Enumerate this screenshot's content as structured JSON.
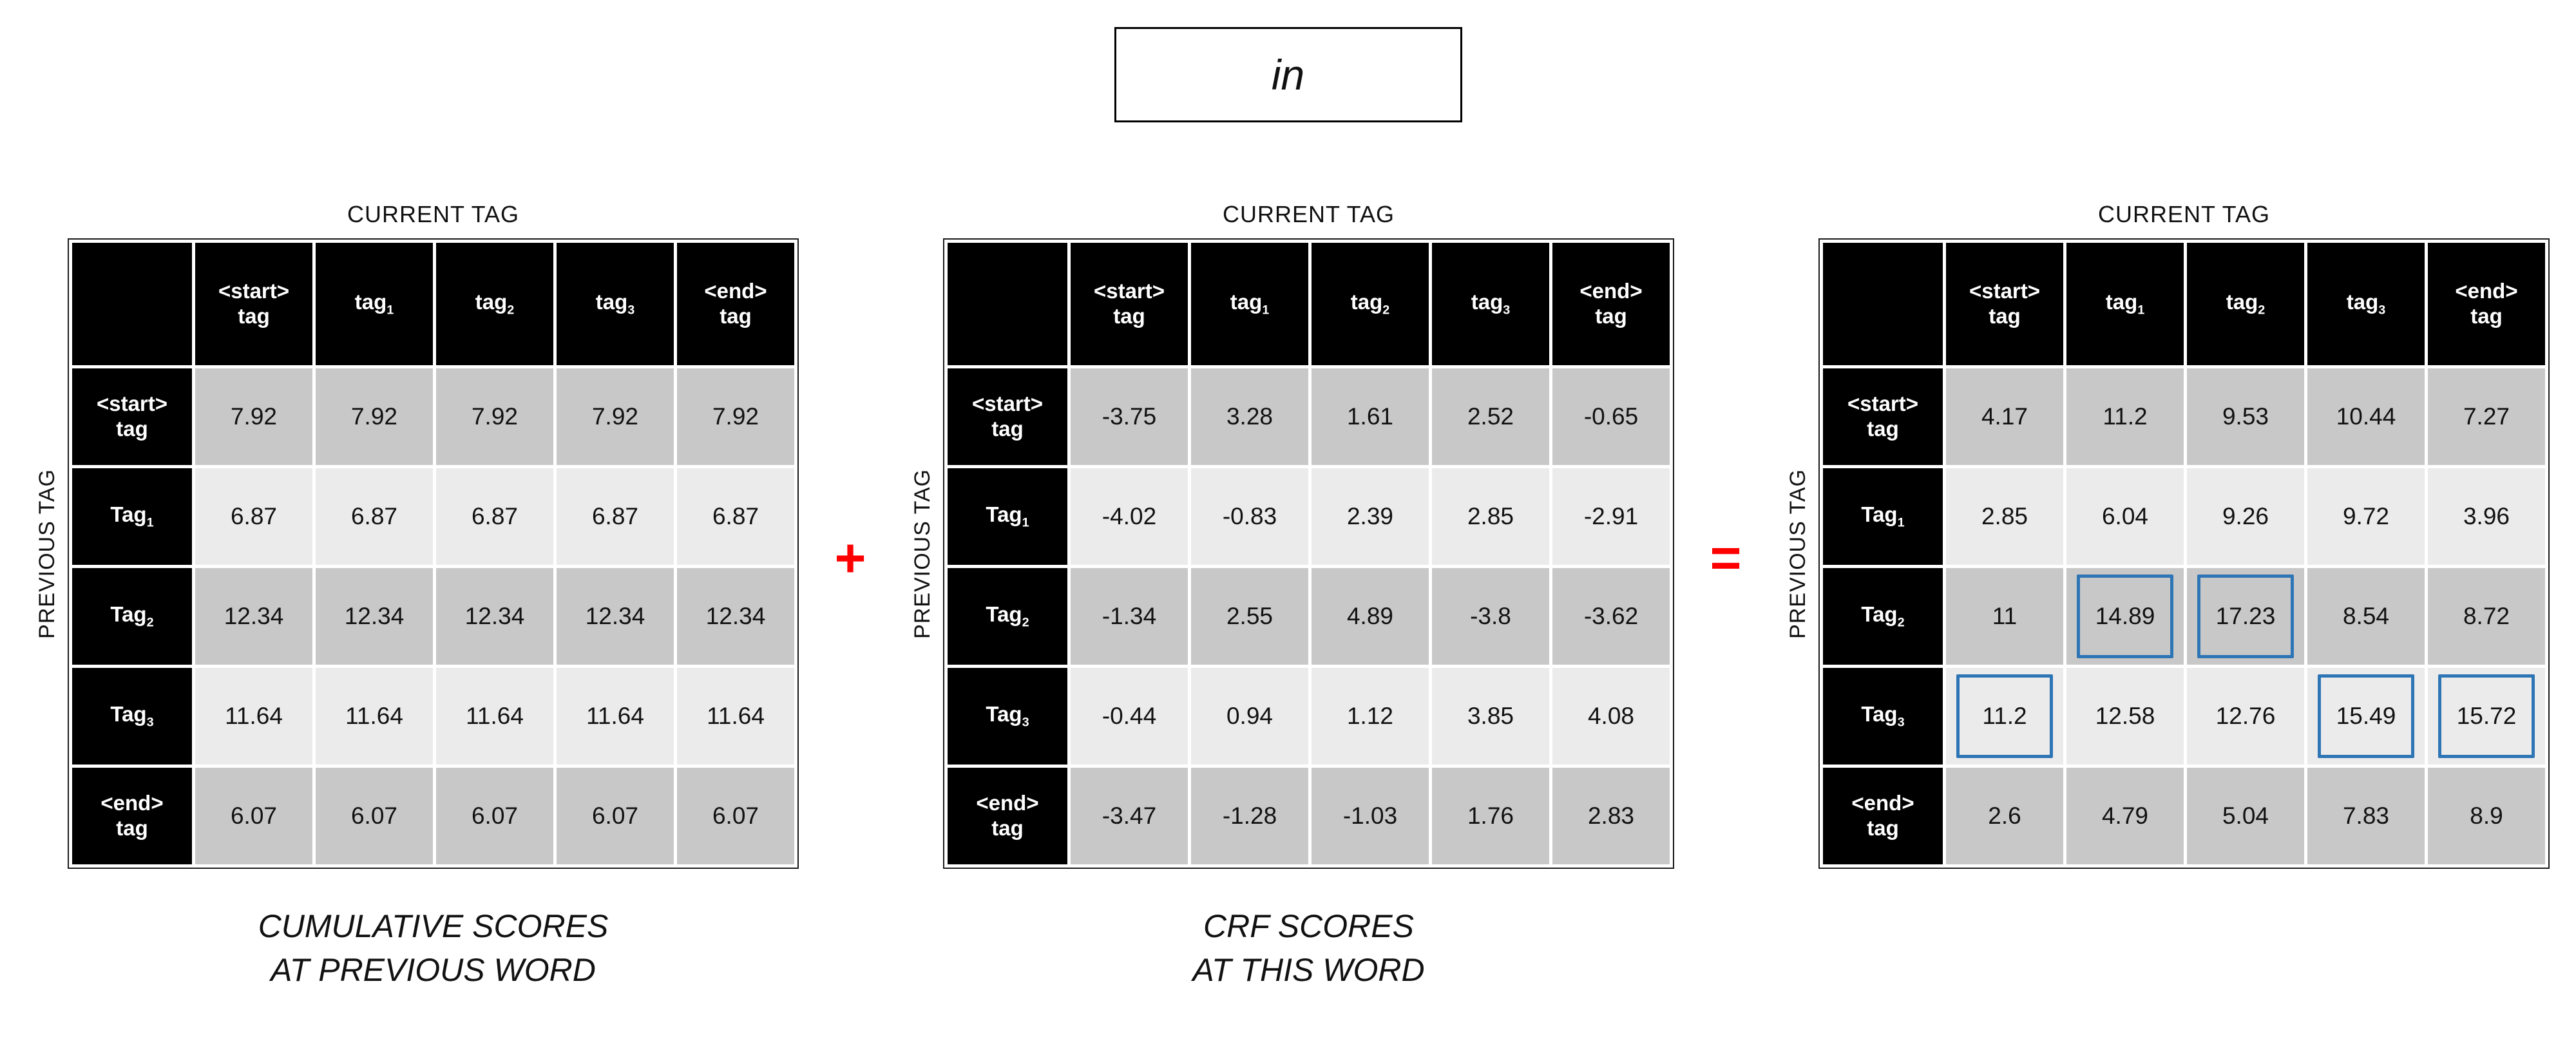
{
  "word": {
    "text": "in"
  },
  "labels": {
    "current_tag": "CURRENT TAG",
    "previous_tag": "PREVIOUS TAG"
  },
  "operators": {
    "plus": "+",
    "equals": "="
  },
  "colors": {
    "operator_red": "#FF0000",
    "highlight_blue": "#2E75B6",
    "header_black": "#000000",
    "row_dark": "#C8C8C8",
    "row_light": "#EBEBEB"
  },
  "matrix_headers": {
    "cols": [
      {
        "text": "<start>",
        "text2": "tag"
      },
      {
        "text": "tag",
        "sub": "1"
      },
      {
        "text": "tag",
        "sub": "2"
      },
      {
        "text": "tag",
        "sub": "3"
      },
      {
        "text": "<end>",
        "text2": "tag"
      }
    ],
    "rows": [
      {
        "text": "<start>",
        "text2": "tag"
      },
      {
        "text": "Tag",
        "sub": "1"
      },
      {
        "text": "Tag",
        "sub": "2"
      },
      {
        "text": "Tag",
        "sub": "3"
      },
      {
        "text": "<end>",
        "text2": "tag"
      }
    ]
  },
  "tables": [
    {
      "name": "cumulative-scores",
      "caption": [
        "CUMULATIVE SCORES",
        "AT PREVIOUS WORD"
      ],
      "values": [
        [
          "7.92",
          "7.92",
          "7.92",
          "7.92",
          "7.92"
        ],
        [
          "6.87",
          "6.87",
          "6.87",
          "6.87",
          "6.87"
        ],
        [
          "12.34",
          "12.34",
          "12.34",
          "12.34",
          "12.34"
        ],
        [
          "11.64",
          "11.64",
          "11.64",
          "11.64",
          "11.64"
        ],
        [
          "6.07",
          "6.07",
          "6.07",
          "6.07",
          "6.07"
        ]
      ],
      "highlights": []
    },
    {
      "name": "crf-scores",
      "caption": [
        "CRF SCORES",
        "AT THIS WORD"
      ],
      "values": [
        [
          "-3.75",
          "3.28",
          "1.61",
          "2.52",
          "-0.65"
        ],
        [
          "-4.02",
          "-0.83",
          "2.39",
          "2.85",
          "-2.91"
        ],
        [
          "-1.34",
          "2.55",
          "4.89",
          "-3.8",
          "-3.62"
        ],
        [
          "-0.44",
          "0.94",
          "1.12",
          "3.85",
          "4.08"
        ],
        [
          "-3.47",
          "-1.28",
          "-1.03",
          "1.76",
          "2.83"
        ]
      ],
      "highlights": []
    },
    {
      "name": "summed-scores",
      "caption": null,
      "values": [
        [
          "4.17",
          "11.2",
          "9.53",
          "10.44",
          "7.27"
        ],
        [
          "2.85",
          "6.04",
          "9.26",
          "9.72",
          "3.96"
        ],
        [
          "11",
          "14.89",
          "17.23",
          "8.54",
          "8.72"
        ],
        [
          "11.2",
          "12.58",
          "12.76",
          "15.49",
          "15.72"
        ],
        [
          "2.6",
          "4.79",
          "5.04",
          "7.83",
          "8.9"
        ]
      ],
      "highlights": [
        [
          2,
          1
        ],
        [
          2,
          2
        ],
        [
          3,
          0
        ],
        [
          3,
          3
        ],
        [
          3,
          4
        ]
      ]
    }
  ]
}
